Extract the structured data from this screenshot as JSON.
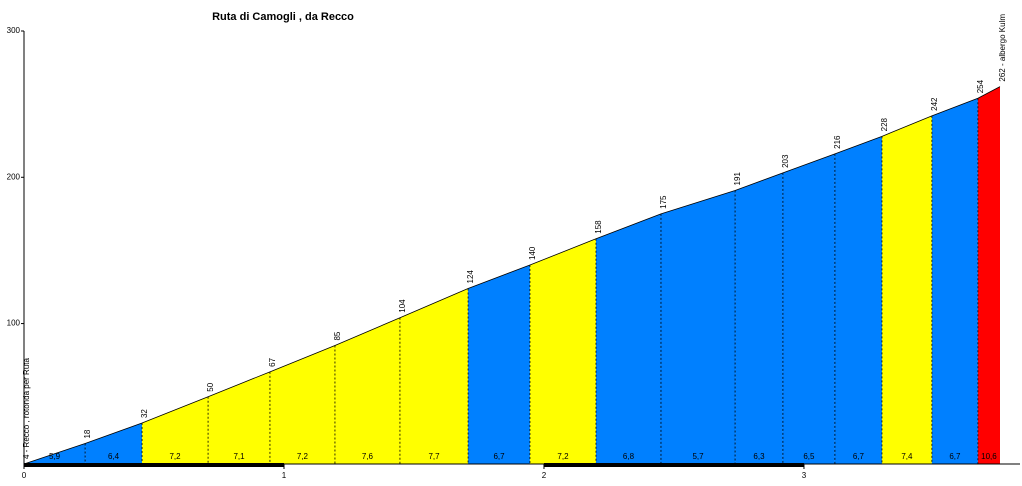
{
  "chart_data": {
    "type": "profile",
    "title": "Ruta di Camogli , da Recco",
    "x": [
      0,
      0.235,
      0.454,
      0.708,
      0.946,
      1.196,
      1.446,
      1.708,
      1.946,
      2.2,
      2.45,
      2.735,
      2.919,
      3.119,
      3.3,
      3.492,
      3.669,
      3.754
    ],
    "values": [
      4,
      18,
      32,
      50,
      67,
      85,
      104,
      124,
      140,
      158,
      175,
      191,
      203,
      216,
      228,
      242,
      254,
      262
    ],
    "value_labels": [
      "4 - Recco , rotonda per Ruta",
      "18",
      "32",
      "50",
      "67",
      "85",
      "104",
      "124",
      "140",
      "158",
      "175",
      "191",
      "203",
      "216",
      "228",
      "242",
      "254",
      "262 - albergo Kulm"
    ],
    "gradients": [
      5.9,
      6.4,
      7.2,
      7.1,
      7.2,
      7.6,
      7.7,
      6.7,
      7.2,
      6.8,
      5.7,
      6.3,
      6.5,
      6.7,
      7.4,
      6.7,
      10.6
    ],
    "gradient_labels": [
      "5,9",
      "6,4",
      "7,2",
      "7,1",
      "7,2",
      "7,6",
      "7,7",
      "6,7",
      "7,2",
      "6,8",
      "5,7",
      "6,3",
      "6,5",
      "6,7",
      "7,4",
      "6,7",
      "10,6"
    ],
    "colors": [
      "#0080ff",
      "#0080ff",
      "#ffff00",
      "#ffff00",
      "#ffff00",
      "#ffff00",
      "#ffff00",
      "#0080ff",
      "#ffff00",
      "#0080ff",
      "#0080ff",
      "#0080ff",
      "#0080ff",
      "#0080ff",
      "#ffff00",
      "#0080ff",
      "#ff0000"
    ],
    "xlim": [
      0,
      3.754
    ],
    "xticks": [
      0,
      1,
      2,
      3
    ],
    "ylim": [
      4,
      300
    ],
    "yticks": [
      100,
      200,
      300
    ]
  }
}
